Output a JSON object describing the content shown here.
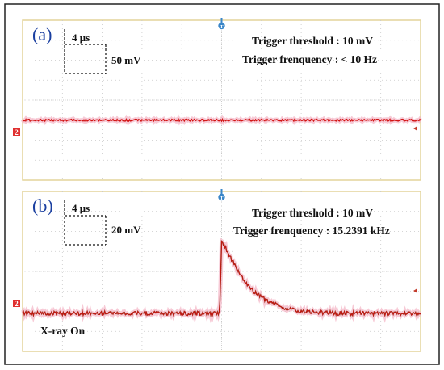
{
  "colors": {
    "trace": "#d21414",
    "trace_dark": "#8e2a12",
    "trace_halo": "#f3b3c5",
    "grid": "#c8c8c8",
    "frame": "#e3d49a",
    "panel_label": "#1a3fa0",
    "trigger_marker": "#3a86c8",
    "channel_marker": "#e03030"
  },
  "icons": {
    "trigger": "trigger-marker-icon",
    "channel": "channel-marker-icon",
    "level": "level-arrow-icon"
  },
  "chart_data": [
    {
      "type": "line",
      "panel_label": "(a)",
      "scale": {
        "time": "4 μs",
        "voltage": "50 mV"
      },
      "info": [
        "Trigger threshold : 10 mV",
        "Trigger frenquency :  < 10 Hz"
      ],
      "channel_marker": "2",
      "trigger_marker": "T",
      "x_divisions": 10,
      "y_divisions": 8,
      "grid": true,
      "series": [
        {
          "x": [
            -5,
            -4,
            -3,
            -2,
            -1,
            0,
            1,
            2,
            3,
            4,
            5
          ],
          "y": [
            -1,
            -1,
            -1,
            -1,
            -1,
            -1,
            -1,
            -1,
            -1,
            -1,
            -1
          ]
        }
      ]
    },
    {
      "type": "line",
      "panel_label": "(b)",
      "scale": {
        "time": "4 μs",
        "voltage": "20 mV"
      },
      "info": [
        "Trigger threshold : 10 mV",
        "Trigger frenquency : 15.2391 kHz"
      ],
      "annotation": "X-ray On",
      "channel_marker": "2",
      "trigger_marker": "T",
      "x_divisions": 10,
      "y_divisions": 8,
      "grid": true,
      "series": [
        {
          "x": [
            -5,
            -3,
            -1,
            -0.05,
            0,
            0.1,
            0.25,
            0.5,
            0.75,
            1,
            1.5,
            2,
            3,
            4,
            5
          ],
          "y": [
            -2.1,
            -2.1,
            -2.1,
            -2.1,
            1.5,
            1.2,
            0.6,
            -0.3,
            -0.9,
            -1.3,
            -1.8,
            -2.0,
            -2.1,
            -2.1,
            -2.1
          ]
        }
      ]
    }
  ]
}
